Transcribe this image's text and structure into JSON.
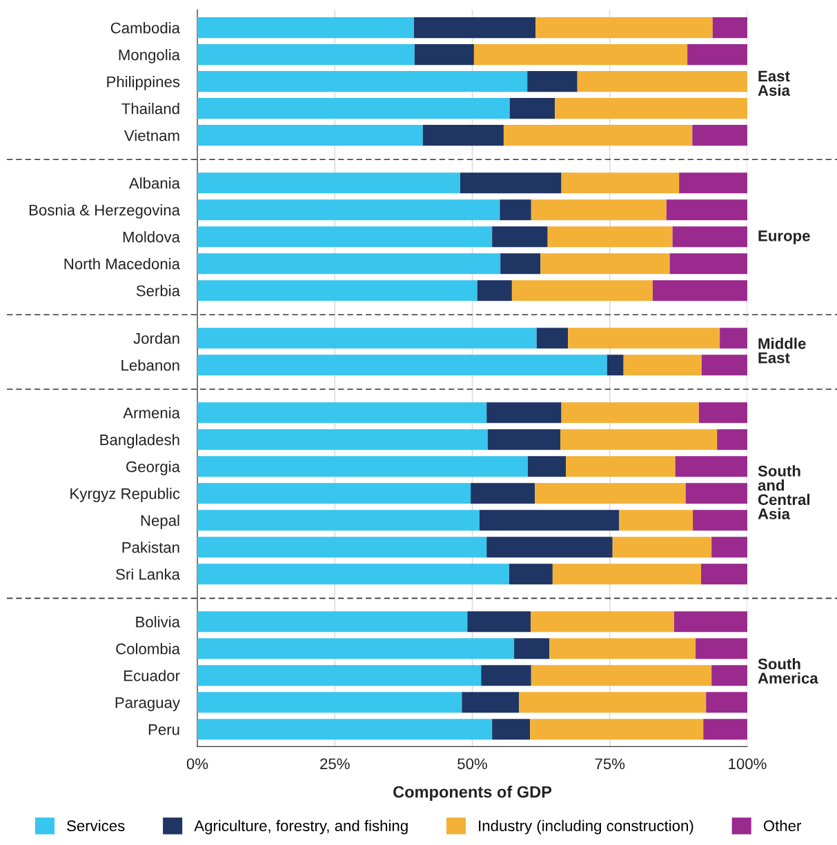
{
  "chart_data": [
    {
      "type": "bar",
      "orientation": "horizontal",
      "stacked": true,
      "categories": [
        "Cambodia",
        "Mongolia",
        "Philippines",
        "Thailand",
        "Vietnam"
      ],
      "series": [
        {
          "color": "#38c5ee",
          "values": [
            39.4,
            39.5,
            60.0,
            56.8,
            41.0
          ]
        },
        {
          "color": "#1f3564",
          "values": [
            22.1,
            10.8,
            9.1,
            8.2,
            14.7
          ]
        },
        {
          "color": "#f3b138",
          "values": [
            32.2,
            38.8,
            30.9,
            35.0,
            34.3
          ]
        },
        {
          "color": "#9a2a8e",
          "values": [
            6.3,
            10.9,
            0,
            0,
            10.0
          ]
        }
      ],
      "xlim": [
        0,
        100
      ],
      "xticks": [
        {
          "value": 0,
          "label": null
        },
        {
          "value": 25,
          "label": null
        },
        {
          "value": 50,
          "label": null
        },
        {
          "value": 75,
          "label": null
        },
        {
          "value": 100,
          "label": null
        }
      ],
      "tick_labels": "y",
      "grid": "x",
      "annotations": [
        "East\nAsia"
      ]
    },
    {
      "type": "bar",
      "orientation": "horizontal",
      "stacked": true,
      "categories": [
        "Albania",
        "Bosnia & Herzegovina",
        "Moldova",
        "North Macedonia",
        "Serbia"
      ],
      "series": [
        {
          "color": "#38c5ee",
          "values": [
            47.8,
            55.0,
            53.6,
            55.1,
            50.9
          ]
        },
        {
          "color": "#1f3564",
          "values": [
            18.4,
            5.7,
            10.1,
            7.3,
            6.3
          ]
        },
        {
          "color": "#f3b138",
          "values": [
            21.4,
            24.6,
            22.7,
            23.5,
            25.6
          ]
        },
        {
          "color": "#9a2a8e",
          "values": [
            12.4,
            14.7,
            13.6,
            14.1,
            17.2
          ]
        }
      ],
      "xlim": [
        0,
        100
      ],
      "xticks": [
        {
          "value": 0,
          "label": null
        },
        {
          "value": 25,
          "label": null
        },
        {
          "value": 50,
          "label": null
        },
        {
          "value": 75,
          "label": null
        },
        {
          "value": 100,
          "label": null
        }
      ],
      "tick_labels": "y",
      "grid": "x",
      "annotations": [
        "Europe"
      ]
    },
    {
      "type": "bar",
      "orientation": "horizontal",
      "stacked": true,
      "categories": [
        "Jordan",
        "Lebanon"
      ],
      "series": [
        {
          "color": "#38c5ee",
          "values": [
            61.7,
            74.5
          ]
        },
        {
          "color": "#1f3564",
          "values": [
            5.7,
            3.0
          ]
        },
        {
          "color": "#f3b138",
          "values": [
            27.6,
            14.2
          ]
        },
        {
          "color": "#9a2a8e",
          "values": [
            5.0,
            8.3
          ]
        }
      ],
      "xlim": [
        0,
        100
      ],
      "xticks": [
        {
          "value": 0,
          "label": null
        },
        {
          "value": 25,
          "label": null
        },
        {
          "value": 50,
          "label": null
        },
        {
          "value": 75,
          "label": null
        },
        {
          "value": 100,
          "label": null
        }
      ],
      "tick_labels": "y",
      "grid": "x",
      "annotations": [
        "Middle\nEast"
      ]
    },
    {
      "type": "bar",
      "orientation": "horizontal",
      "stacked": true,
      "categories": [
        "Armenia",
        "Bangladesh",
        "Georgia",
        "Kyrgyz Republic",
        "Nepal",
        "Pakistan",
        "Sri Lanka"
      ],
      "series": [
        {
          "color": "#38c5ee",
          "values": [
            52.6,
            52.8,
            60.1,
            49.7,
            51.3,
            52.6,
            56.7
          ]
        },
        {
          "color": "#1f3564",
          "values": [
            13.6,
            13.2,
            6.9,
            11.7,
            25.4,
            22.9,
            7.9
          ]
        },
        {
          "color": "#f3b138",
          "values": [
            25.0,
            28.5,
            19.9,
            27.4,
            13.4,
            18.0,
            27.0
          ]
        },
        {
          "color": "#9a2a8e",
          "values": [
            8.8,
            5.5,
            13.1,
            11.2,
            9.9,
            6.5,
            8.4
          ]
        }
      ],
      "xlim": [
        0,
        100
      ],
      "xticks": [
        {
          "value": 0,
          "label": null
        },
        {
          "value": 25,
          "label": null
        },
        {
          "value": 50,
          "label": null
        },
        {
          "value": 75,
          "label": null
        },
        {
          "value": 100,
          "label": null
        }
      ],
      "tick_labels": "y",
      "grid": "x",
      "annotations": [
        "South\nand\nCentral\nAsia"
      ]
    },
    {
      "type": "bar",
      "orientation": "horizontal",
      "stacked": true,
      "categories": [
        "Bolivia",
        "Colombia",
        "Ecuador",
        "Paraguay",
        "Peru"
      ],
      "series": [
        {
          "name": "Services",
          "color": "#38c5ee",
          "values": [
            49.1,
            57.6,
            51.6,
            48.1,
            53.6
          ]
        },
        {
          "name": "Agriculture, forestry, and fishing",
          "color": "#1f3564",
          "values": [
            11.5,
            6.4,
            9.1,
            10.4,
            6.9
          ]
        },
        {
          "name": "Industry (including construction)",
          "color": "#f3b138",
          "values": [
            26.1,
            26.6,
            32.8,
            34.0,
            31.5
          ]
        },
        {
          "name": "Other",
          "color": "#9a2a8e",
          "values": [
            13.3,
            9.4,
            6.5,
            7.5,
            8.0
          ]
        }
      ],
      "xlim": [
        0,
        100
      ],
      "xticks": [
        {
          "value": 0,
          "label": "0%"
        },
        {
          "value": 25,
          "label": "25%"
        },
        {
          "value": 50,
          "label": "50%"
        },
        {
          "value": 75,
          "label": "75%"
        },
        {
          "value": 100,
          "label": "100%"
        }
      ],
      "xlabel": "Components of GDP",
      "grid": "x",
      "legend": "bottom",
      "annotations": [
        "South\nAmerica"
      ]
    }
  ]
}
